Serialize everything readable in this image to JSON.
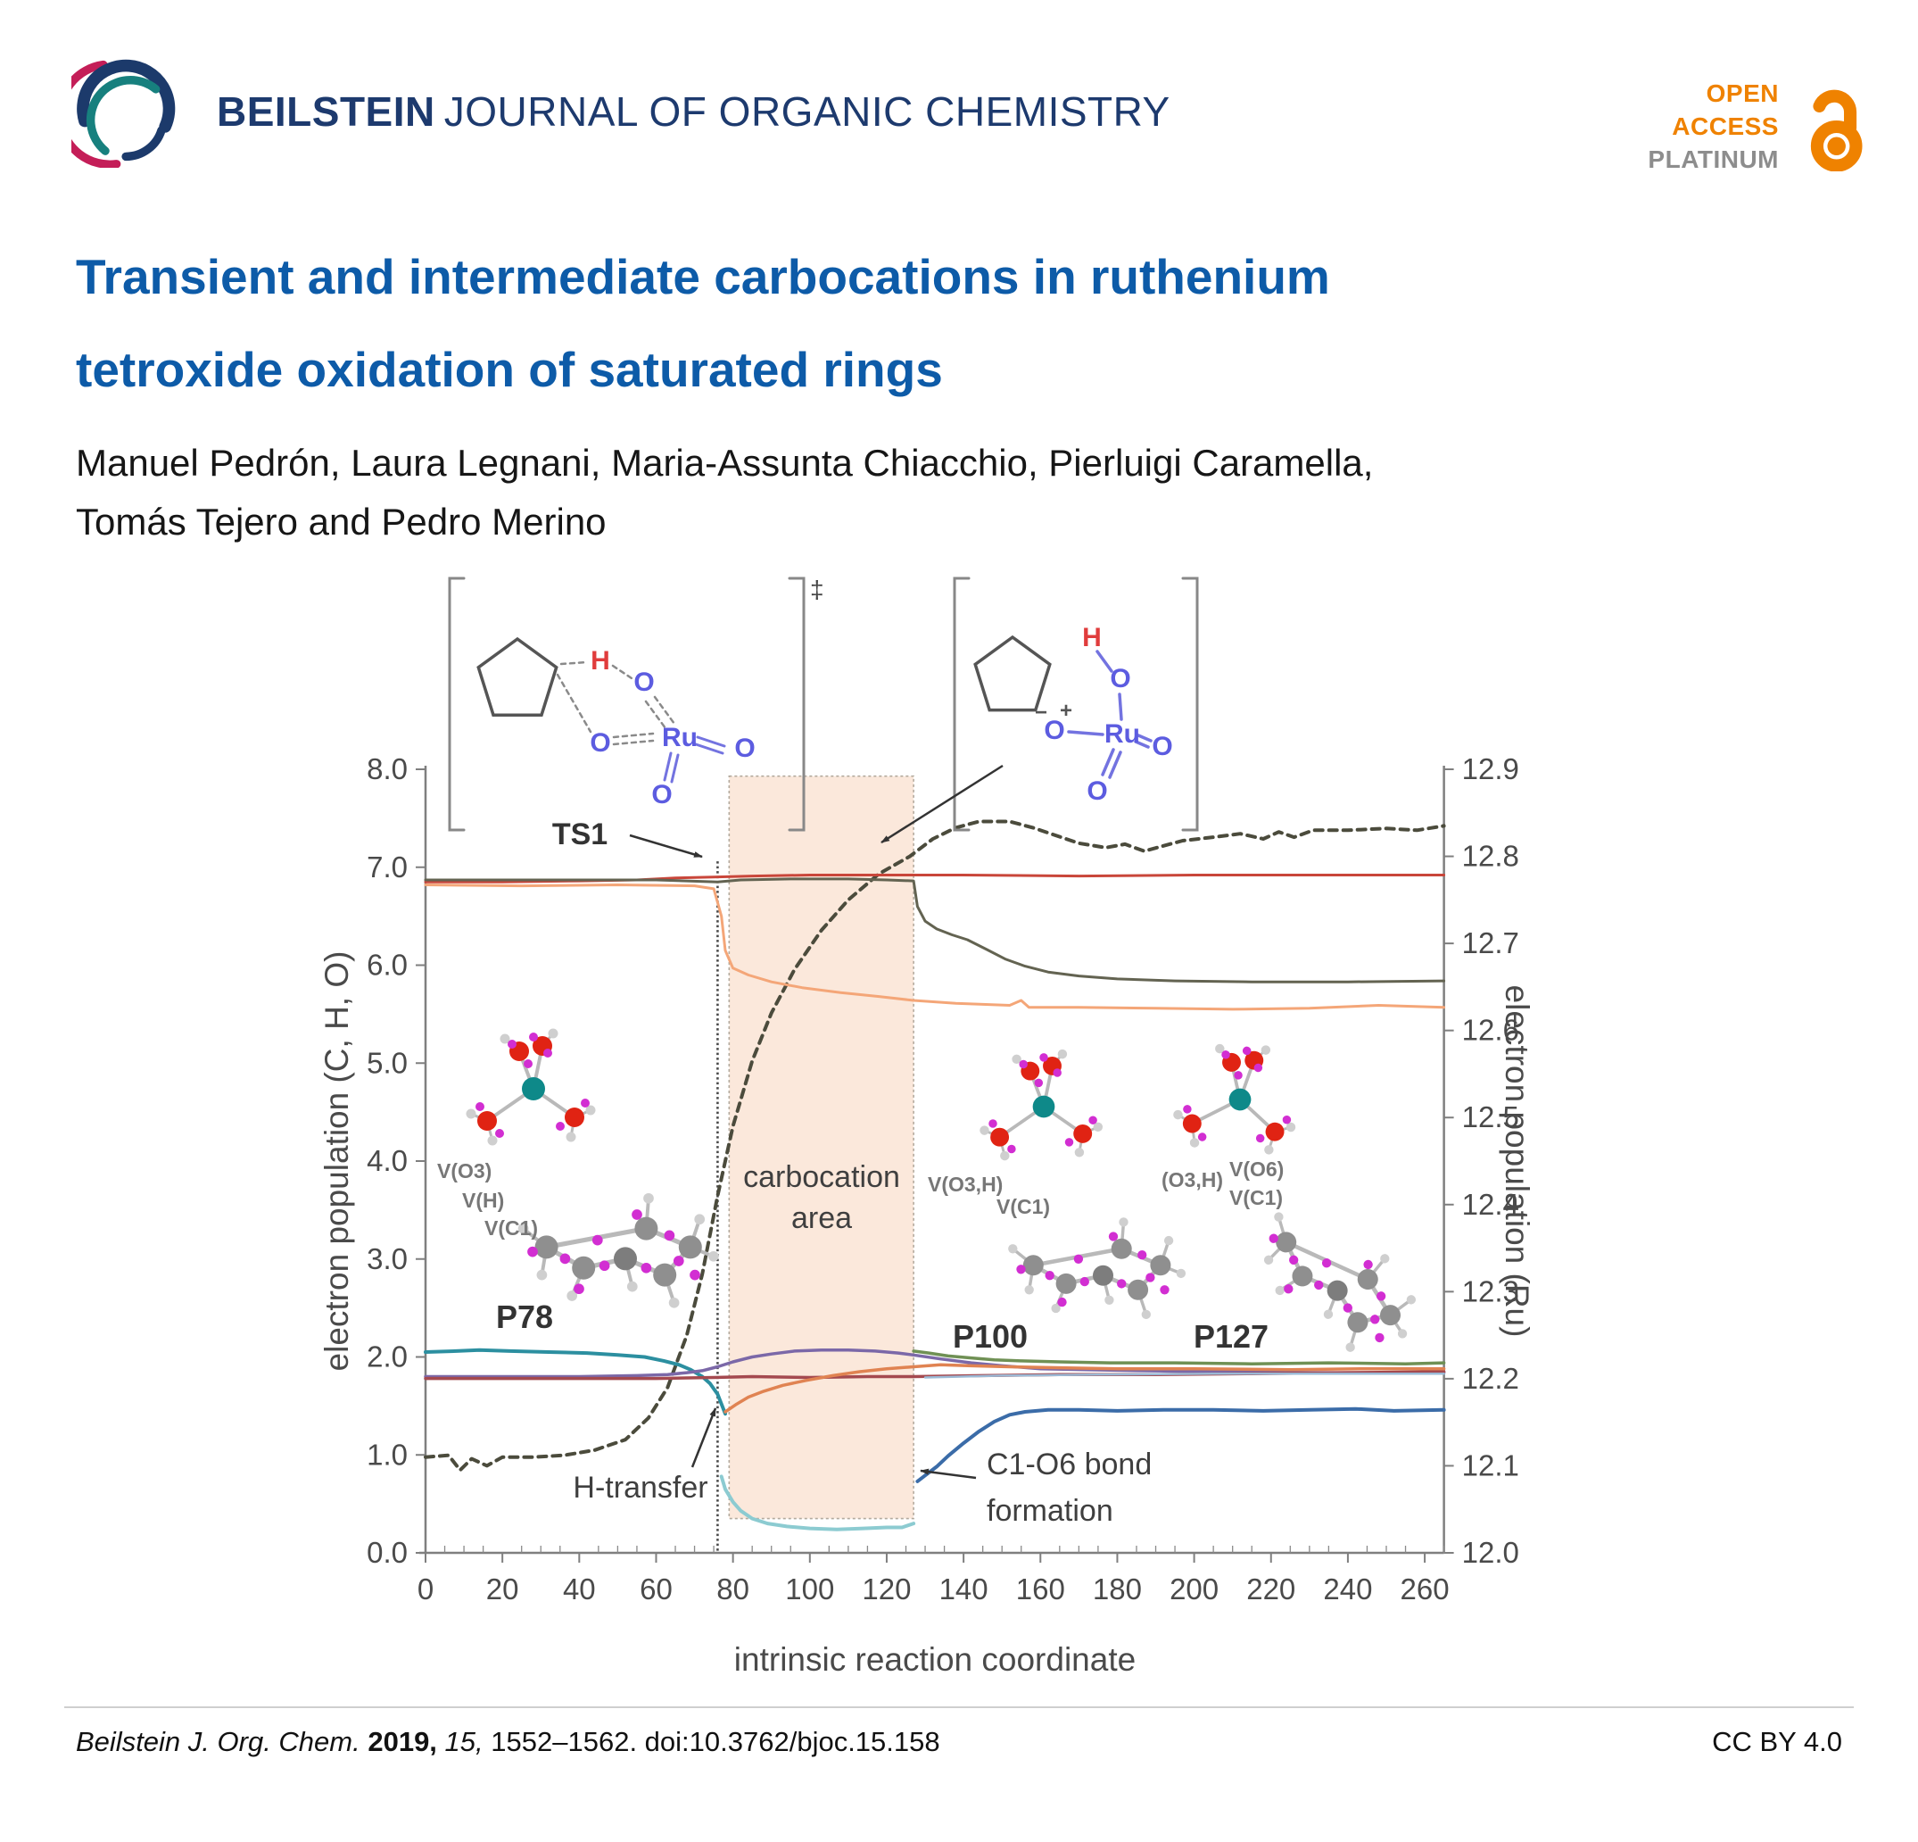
{
  "header": {
    "journal_name_bold": "BEILSTEIN",
    "journal_name_rest": "JOURNAL OF ORGANIC CHEMISTRY",
    "navy_color": "#1D3A6E",
    "open_access": {
      "line1": "OPEN",
      "line2": "ACCESS",
      "line3": "PLATINUM",
      "accent_color": "#EF8200",
      "platinum_color": "#8D8D8D"
    }
  },
  "article": {
    "title_line1": "Transient and intermediate carbocations in ruthenium",
    "title_line2": "tetroxide oxidation of saturated rings",
    "title_color": "#0D5BA8",
    "authors_line1": "Manuel Pedrón, Laura Legnani, Maria-Assunta Chiacchio, Pierluigi Caramella,",
    "authors_line2": "Tomás Tejero and Pedro Merino"
  },
  "footer": {
    "journal_italic": "Beilstein J. Org. Chem.",
    "year_bold": "2019,",
    "volume_italic": "15,",
    "pages_doi": "1552–1562. doi:10.3762/bjoc.15.158",
    "license": "CC BY 4.0"
  },
  "figure": {
    "atoms": {
      "H": "H",
      "O": "O",
      "Ru": "Ru",
      "dagger": "‡",
      "plus": "+",
      "minus": "−"
    },
    "labels": {
      "ts1": "TS1",
      "h_transfer": "H-transfer",
      "carbocation_line1": "carbocation",
      "carbocation_line2": "area",
      "c1o6_line1": "C1-O6 bond",
      "c1o6_line2": "formation",
      "p78": "P78",
      "p100": "P100",
      "p127": "P127",
      "p78_v1": "V(O3)",
      "p78_v2": "V(H)",
      "p78_v3": "V(C1)",
      "p100_v1": "V(O3,H)",
      "p100_v2": "V(C1)",
      "p127_v1": "(O3,H)",
      "p127_v2": "V(O6)",
      "p127_v3": "V(C1)"
    },
    "structure_colors": {
      "bond_blue": "#7373E0",
      "atom_blue": "#5C5CE0",
      "atom_red": "#E03C3C",
      "ru_teal": "#0E8989",
      "oxygen_red": "#E02313",
      "attractor_magenta": "#D22ED2"
    }
  },
  "chart_data": {
    "type": "line",
    "title": "",
    "xlabel": "intrinsic reaction coordinate",
    "ylabel_left": "electron population (C, H, O)",
    "ylabel_right": "electron population (Ru)",
    "xlim": [
      0,
      265
    ],
    "ylim_left": [
      0,
      8
    ],
    "ylim_right": [
      12.0,
      12.9
    ],
    "grid": false,
    "legend": "none",
    "x_ticks": [
      [
        0,
        "0"
      ],
      [
        20,
        "20"
      ],
      [
        40,
        "40"
      ],
      [
        60,
        "60"
      ],
      [
        80,
        "80"
      ],
      [
        100,
        "100"
      ],
      [
        120,
        "120"
      ],
      [
        140,
        "140"
      ],
      [
        160,
        "160"
      ],
      [
        180,
        "180"
      ],
      [
        200,
        "200"
      ],
      [
        220,
        "220"
      ],
      [
        240,
        "240"
      ],
      [
        260,
        "260"
      ]
    ],
    "x_minor_tick_step": 5,
    "y_ticks_left": [
      [
        0,
        "0.0"
      ],
      [
        1,
        "1.0"
      ],
      [
        2,
        "2.0"
      ],
      [
        3,
        "3.0"
      ],
      [
        4,
        "4.0"
      ],
      [
        5,
        "5.0"
      ],
      [
        6,
        "6.0"
      ],
      [
        7,
        "7.0"
      ],
      [
        8,
        "8.0"
      ]
    ],
    "y_ticks_right": [
      [
        12.0,
        "12.0"
      ],
      [
        12.1,
        "12.1"
      ],
      [
        12.2,
        "12.2"
      ],
      [
        12.3,
        "12.3"
      ],
      [
        12.4,
        "12.4"
      ],
      [
        12.5,
        "12.5"
      ],
      [
        12.6,
        "12.6"
      ],
      [
        12.7,
        "12.7"
      ],
      [
        12.8,
        "12.8"
      ],
      [
        12.9,
        "12.9"
      ]
    ],
    "ts1_vline_x": 76,
    "carbocation_region": {
      "x0": 79,
      "x1": 127,
      "y0": 0.35,
      "y1": 7.93,
      "fill": "#FBE8DB"
    },
    "series": [
      {
        "name": "electron population Ru (dashed, right axis)",
        "axis": "right",
        "color": "#4B4B3C",
        "width": 4,
        "dash": "9 7",
        "points": [
          [
            0,
            12.11
          ],
          [
            6,
            12.112
          ],
          [
            9,
            12.095
          ],
          [
            12,
            12.108
          ],
          [
            16,
            12.1
          ],
          [
            20,
            12.11
          ],
          [
            28,
            12.11
          ],
          [
            36,
            12.112
          ],
          [
            44,
            12.118
          ],
          [
            52,
            12.13
          ],
          [
            58,
            12.155
          ],
          [
            63,
            12.19
          ],
          [
            68,
            12.25
          ],
          [
            72,
            12.32
          ],
          [
            76,
            12.41
          ],
          [
            80,
            12.49
          ],
          [
            85,
            12.565
          ],
          [
            90,
            12.62
          ],
          [
            96,
            12.67
          ],
          [
            103,
            12.715
          ],
          [
            110,
            12.75
          ],
          [
            118,
            12.78
          ],
          [
            126,
            12.8
          ],
          [
            132,
            12.82
          ],
          [
            138,
            12.833
          ],
          [
            144,
            12.84
          ],
          [
            152,
            12.84
          ],
          [
            158,
            12.833
          ],
          [
            164,
            12.824
          ],
          [
            170,
            12.815
          ],
          [
            177,
            12.81
          ],
          [
            182,
            12.814
          ],
          [
            187,
            12.806
          ],
          [
            192,
            12.812
          ],
          [
            197,
            12.818
          ],
          [
            205,
            12.822
          ],
          [
            212,
            12.826
          ],
          [
            218,
            12.82
          ],
          [
            222,
            12.828
          ],
          [
            226,
            12.822
          ],
          [
            231,
            12.83
          ],
          [
            240,
            12.83
          ],
          [
            250,
            12.832
          ],
          [
            258,
            12.83
          ],
          [
            265,
            12.835
          ]
        ]
      },
      {
        "name": "O6 population (red)",
        "axis": "left",
        "color": "#C9463A",
        "width": 3,
        "points": [
          [
            0,
            6.85
          ],
          [
            20,
            6.85
          ],
          [
            40,
            6.86
          ],
          [
            55,
            6.87
          ],
          [
            65,
            6.89
          ],
          [
            75,
            6.9
          ],
          [
            85,
            6.91
          ],
          [
            100,
            6.92
          ],
          [
            120,
            6.92
          ],
          [
            140,
            6.92
          ],
          [
            170,
            6.91
          ],
          [
            200,
            6.92
          ],
          [
            230,
            6.92
          ],
          [
            265,
            6.92
          ]
        ]
      },
      {
        "name": "O3 population (dark olive)",
        "axis": "left",
        "color": "#636351",
        "width": 3,
        "points": [
          [
            0,
            6.87
          ],
          [
            30,
            6.87
          ],
          [
            60,
            6.87
          ],
          [
            76,
            6.85
          ],
          [
            82,
            6.87
          ],
          [
            95,
            6.88
          ],
          [
            110,
            6.88
          ],
          [
            120,
            6.87
          ],
          [
            127,
            6.86
          ],
          [
            128,
            6.6
          ],
          [
            130,
            6.45
          ],
          [
            133,
            6.37
          ],
          [
            137,
            6.31
          ],
          [
            141,
            6.26
          ],
          [
            146,
            6.16
          ],
          [
            151,
            6.06
          ],
          [
            156,
            5.99
          ],
          [
            162,
            5.93
          ],
          [
            170,
            5.89
          ],
          [
            180,
            5.86
          ],
          [
            195,
            5.84
          ],
          [
            215,
            5.83
          ],
          [
            240,
            5.83
          ],
          [
            265,
            5.84
          ]
        ]
      },
      {
        "name": "O1 population (light orange)",
        "axis": "left",
        "color": "#F4A678",
        "width": 3,
        "points": [
          [
            0,
            6.82
          ],
          [
            25,
            6.81
          ],
          [
            50,
            6.82
          ],
          [
            70,
            6.81
          ],
          [
            75,
            6.78
          ],
          [
            77,
            6.5
          ],
          [
            78,
            6.15
          ],
          [
            80,
            5.97
          ],
          [
            84,
            5.9
          ],
          [
            90,
            5.83
          ],
          [
            98,
            5.77
          ],
          [
            108,
            5.72
          ],
          [
            118,
            5.68
          ],
          [
            127,
            5.64
          ],
          [
            138,
            5.61
          ],
          [
            152,
            5.59
          ],
          [
            155,
            5.64
          ],
          [
            157,
            5.57
          ],
          [
            170,
            5.57
          ],
          [
            190,
            5.56
          ],
          [
            210,
            5.55
          ],
          [
            230,
            5.56
          ],
          [
            248,
            5.59
          ],
          [
            265,
            5.57
          ]
        ]
      },
      {
        "name": "V(C1,H) basin (teal)",
        "axis": "left",
        "color": "#2C8FA0",
        "width": 4,
        "points": [
          [
            0,
            2.05
          ],
          [
            8,
            2.06
          ],
          [
            14,
            2.07
          ],
          [
            22,
            2.06
          ],
          [
            32,
            2.05
          ],
          [
            42,
            2.04
          ],
          [
            50,
            2.02
          ],
          [
            57,
            2.0
          ],
          [
            62,
            1.96
          ],
          [
            66,
            1.92
          ],
          [
            69,
            1.87
          ],
          [
            72,
            1.8
          ],
          [
            74,
            1.73
          ],
          [
            76,
            1.62
          ],
          [
            77,
            1.52
          ],
          [
            78,
            1.42
          ]
        ]
      },
      {
        "name": "V(H) basin (light cyan)",
        "axis": "left",
        "color": "#8CCBD1",
        "width": 4,
        "points": [
          [
            77,
            0.78
          ],
          [
            78,
            0.65
          ],
          [
            80,
            0.52
          ],
          [
            82,
            0.43
          ],
          [
            85,
            0.35
          ],
          [
            89,
            0.3
          ],
          [
            94,
            0.27
          ],
          [
            100,
            0.25
          ],
          [
            107,
            0.24
          ],
          [
            114,
            0.25
          ],
          [
            120,
            0.26
          ],
          [
            124,
            0.26
          ],
          [
            127,
            0.3
          ]
        ]
      },
      {
        "name": "V(C1,O6) bond (steel blue)",
        "axis": "left",
        "color": "#3B6CA8",
        "width": 4,
        "points": [
          [
            128,
            0.73
          ],
          [
            130,
            0.79
          ],
          [
            133,
            0.88
          ],
          [
            136,
            0.99
          ],
          [
            140,
            1.12
          ],
          [
            144,
            1.24
          ],
          [
            148,
            1.34
          ],
          [
            152,
            1.41
          ],
          [
            156,
            1.44
          ],
          [
            162,
            1.46
          ],
          [
            170,
            1.46
          ],
          [
            180,
            1.45
          ],
          [
            192,
            1.46
          ],
          [
            205,
            1.46
          ],
          [
            218,
            1.45
          ],
          [
            230,
            1.46
          ],
          [
            242,
            1.47
          ],
          [
            252,
            1.45
          ],
          [
            265,
            1.46
          ]
        ]
      },
      {
        "name": "V(C1) basin (purple)",
        "axis": "left",
        "color": "#7B68A8",
        "width": 3.5,
        "points": [
          [
            0,
            1.8
          ],
          [
            20,
            1.8
          ],
          [
            40,
            1.8
          ],
          [
            55,
            1.81
          ],
          [
            63,
            1.82
          ],
          [
            68,
            1.84
          ],
          [
            72,
            1.86
          ],
          [
            76,
            1.9
          ],
          [
            80,
            1.95
          ],
          [
            85,
            2.0
          ],
          [
            90,
            2.03
          ],
          [
            96,
            2.06
          ],
          [
            103,
            2.07
          ],
          [
            110,
            2.07
          ],
          [
            117,
            2.06
          ],
          [
            123,
            2.04
          ],
          [
            127,
            2.02
          ],
          [
            134,
            1.98
          ],
          [
            142,
            1.94
          ],
          [
            150,
            1.91
          ],
          [
            160,
            1.88
          ],
          [
            172,
            1.87
          ],
          [
            186,
            1.86
          ],
          [
            205,
            1.85
          ],
          [
            230,
            1.84
          ],
          [
            265,
            1.84
          ]
        ]
      },
      {
        "name": "O3 lone pair (maroon)",
        "axis": "left",
        "color": "#A4494F",
        "width": 3.5,
        "points": [
          [
            0,
            1.78
          ],
          [
            30,
            1.78
          ],
          [
            60,
            1.78
          ],
          [
            75,
            1.79
          ],
          [
            85,
            1.8
          ],
          [
            100,
            1.79
          ],
          [
            115,
            1.8
          ],
          [
            127,
            1.8
          ],
          [
            145,
            1.81
          ],
          [
            165,
            1.82
          ],
          [
            190,
            1.82
          ],
          [
            215,
            1.83
          ],
          [
            240,
            1.84
          ],
          [
            265,
            1.85
          ]
        ]
      },
      {
        "name": "O6 lone pair (orange)",
        "axis": "left",
        "color": "#E08352",
        "width": 3.5,
        "points": [
          [
            78,
            1.44
          ],
          [
            81,
            1.52
          ],
          [
            84,
            1.59
          ],
          [
            88,
            1.65
          ],
          [
            93,
            1.71
          ],
          [
            99,
            1.76
          ],
          [
            106,
            1.81
          ],
          [
            113,
            1.85
          ],
          [
            120,
            1.88
          ],
          [
            127,
            1.9
          ],
          [
            134,
            1.92
          ],
          [
            142,
            1.91
          ],
          [
            152,
            1.9
          ],
          [
            165,
            1.89
          ],
          [
            180,
            1.88
          ],
          [
            200,
            1.88
          ],
          [
            225,
            1.87
          ],
          [
            245,
            1.88
          ],
          [
            265,
            1.88
          ]
        ]
      },
      {
        "name": "C1 basin after area (green)",
        "axis": "left",
        "color": "#6F9054",
        "width": 3.5,
        "points": [
          [
            127,
            2.06
          ],
          [
            131,
            2.04
          ],
          [
            136,
            2.01
          ],
          [
            142,
            1.99
          ],
          [
            148,
            1.97
          ],
          [
            155,
            1.96
          ],
          [
            165,
            1.95
          ],
          [
            178,
            1.94
          ],
          [
            195,
            1.94
          ],
          [
            215,
            1.93
          ],
          [
            235,
            1.94
          ],
          [
            255,
            1.93
          ],
          [
            265,
            1.94
          ]
        ]
      },
      {
        "name": "flat light blue",
        "axis": "left",
        "color": "#9BBAD6",
        "width": 2.5,
        "points": [
          [
            130,
            1.79
          ],
          [
            150,
            1.81
          ],
          [
            175,
            1.82
          ],
          [
            205,
            1.83
          ],
          [
            235,
            1.83
          ],
          [
            265,
            1.83
          ]
        ]
      }
    ]
  }
}
